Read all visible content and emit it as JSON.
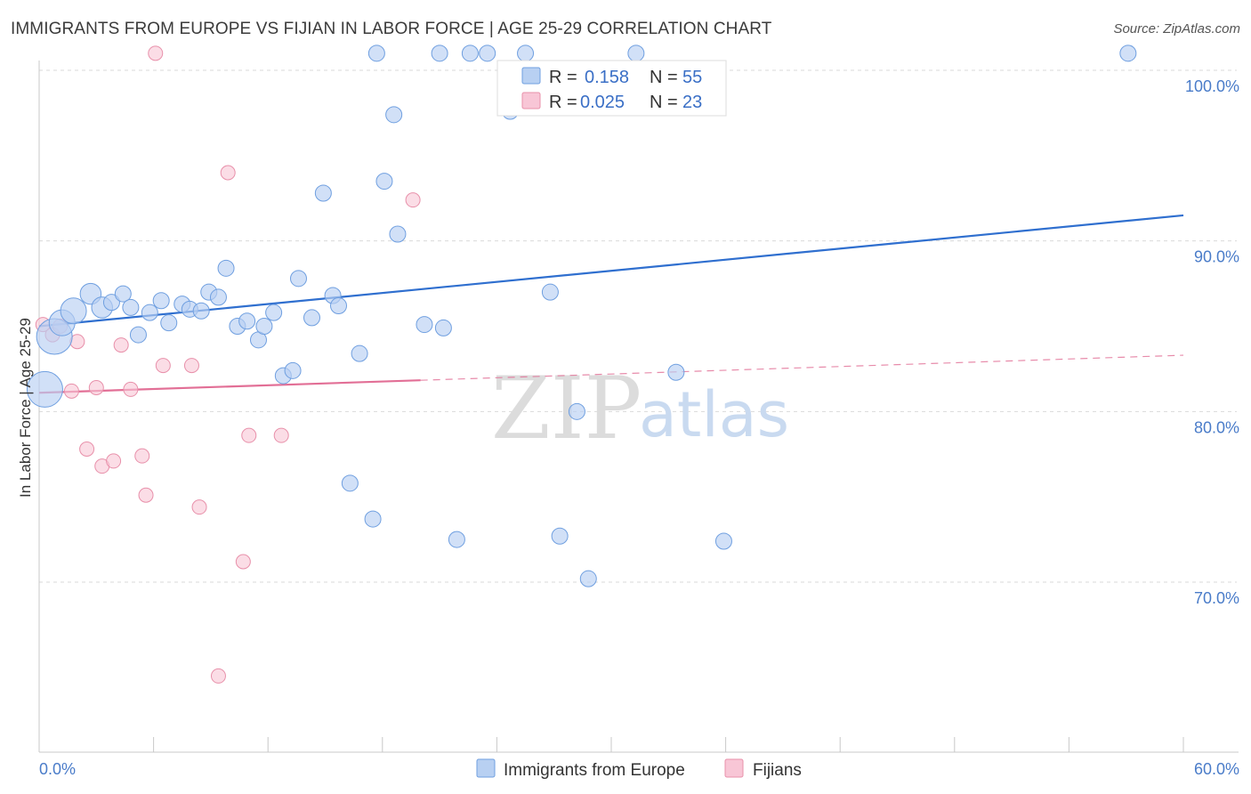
{
  "header": {
    "title": "IMMIGRANTS FROM EUROPE VS FIJIAN IN LABOR FORCE | AGE 25-29 CORRELATION CHART",
    "source": "Source: ZipAtlas.com"
  },
  "watermark": {
    "zip": "ZIP",
    "atlas": "atlas"
  },
  "colors": {
    "blue_fill": "#b8d0f2",
    "blue_stroke": "#6f9fe0",
    "blue_line": "#2f6fcf",
    "pink_fill": "#f8c6d6",
    "pink_stroke": "#e890aa",
    "pink_line": "#e26f96",
    "grid": "#d9d9d9",
    "tick_label": "#4a7cc9"
  },
  "legend": {
    "rows": [
      {
        "r_label": "R =",
        "r_value": "0.158",
        "n_label": "N =",
        "n_value": "55"
      },
      {
        "r_label": "R =",
        "r_value": "0.025",
        "n_label": "N =",
        "n_value": "23"
      }
    ]
  },
  "chart_data": {
    "type": "scatter",
    "title": "IMMIGRANTS FROM EUROPE VS FIJIAN IN LABOR FORCE | AGE 25-29 CORRELATION CHART",
    "xlabel": "",
    "ylabel": "In Labor Force | Age 25-29",
    "xlim": [
      0,
      60
    ],
    "ylim": [
      60,
      102
    ],
    "x_tick_labels": [
      "0.0%",
      "60.0%"
    ],
    "y_ticks": [
      100,
      90,
      80,
      70
    ],
    "y_tick_labels": [
      "100.0%",
      "90.0%",
      "80.0%",
      "70.0%"
    ],
    "legend_position": "top-center",
    "series": [
      {
        "name": "Immigrants from Europe",
        "R": 0.158,
        "N": 55,
        "trend": {
          "x": [
            0,
            60
          ],
          "y": [
            85.0,
            91.5
          ],
          "dashed_from": null
        },
        "points": [
          {
            "x": 0.3,
            "y": 81.3,
            "s": 3
          },
          {
            "x": 0.8,
            "y": 84.4,
            "s": 3
          },
          {
            "x": 1.2,
            "y": 85.2,
            "s": 2
          },
          {
            "x": 1.8,
            "y": 85.9,
            "s": 2
          },
          {
            "x": 2.7,
            "y": 86.9,
            "s": 1.5
          },
          {
            "x": 3.3,
            "y": 86.1,
            "s": 1.5
          },
          {
            "x": 3.8,
            "y": 86.4,
            "s": 1
          },
          {
            "x": 4.4,
            "y": 86.9,
            "s": 1
          },
          {
            "x": 4.8,
            "y": 86.1,
            "s": 1
          },
          {
            "x": 5.2,
            "y": 84.5,
            "s": 1
          },
          {
            "x": 5.8,
            "y": 85.8,
            "s": 1
          },
          {
            "x": 6.4,
            "y": 86.5,
            "s": 1
          },
          {
            "x": 6.8,
            "y": 85.2,
            "s": 1
          },
          {
            "x": 7.5,
            "y": 86.3,
            "s": 1
          },
          {
            "x": 7.9,
            "y": 86.0,
            "s": 1
          },
          {
            "x": 8.5,
            "y": 85.9,
            "s": 1
          },
          {
            "x": 8.9,
            "y": 87.0,
            "s": 1
          },
          {
            "x": 9.4,
            "y": 86.7,
            "s": 1
          },
          {
            "x": 9.8,
            "y": 88.4,
            "s": 1
          },
          {
            "x": 10.4,
            "y": 85.0,
            "s": 1
          },
          {
            "x": 10.9,
            "y": 85.3,
            "s": 1
          },
          {
            "x": 11.5,
            "y": 84.2,
            "s": 1
          },
          {
            "x": 11.8,
            "y": 85.0,
            "s": 1
          },
          {
            "x": 12.3,
            "y": 85.8,
            "s": 1
          },
          {
            "x": 12.8,
            "y": 82.1,
            "s": 1
          },
          {
            "x": 13.3,
            "y": 82.4,
            "s": 1
          },
          {
            "x": 13.6,
            "y": 87.8,
            "s": 1
          },
          {
            "x": 14.3,
            "y": 85.5,
            "s": 1
          },
          {
            "x": 14.9,
            "y": 92.8,
            "s": 1
          },
          {
            "x": 15.4,
            "y": 86.8,
            "s": 1
          },
          {
            "x": 15.7,
            "y": 86.2,
            "s": 1
          },
          {
            "x": 16.3,
            "y": 75.8,
            "s": 1
          },
          {
            "x": 16.8,
            "y": 83.4,
            "s": 1
          },
          {
            "x": 17.5,
            "y": 73.7,
            "s": 1
          },
          {
            "x": 17.7,
            "y": 101.0,
            "s": 1
          },
          {
            "x": 18.1,
            "y": 93.5,
            "s": 1
          },
          {
            "x": 18.6,
            "y": 97.4,
            "s": 1
          },
          {
            "x": 18.8,
            "y": 90.4,
            "s": 1
          },
          {
            "x": 20.2,
            "y": 85.1,
            "s": 1
          },
          {
            "x": 21.0,
            "y": 101.0,
            "s": 1
          },
          {
            "x": 21.2,
            "y": 84.9,
            "s": 1
          },
          {
            "x": 21.9,
            "y": 72.5,
            "s": 1
          },
          {
            "x": 22.6,
            "y": 101.0,
            "s": 1
          },
          {
            "x": 23.5,
            "y": 101.0,
            "s": 1
          },
          {
            "x": 24.7,
            "y": 97.6,
            "s": 1
          },
          {
            "x": 25.5,
            "y": 101.0,
            "s": 1
          },
          {
            "x": 26.8,
            "y": 87.0,
            "s": 1
          },
          {
            "x": 27.3,
            "y": 72.7,
            "s": 1
          },
          {
            "x": 28.2,
            "y": 80.0,
            "s": 1
          },
          {
            "x": 28.8,
            "y": 70.2,
            "s": 1
          },
          {
            "x": 31.3,
            "y": 101.0,
            "s": 1
          },
          {
            "x": 33.4,
            "y": 82.3,
            "s": 1
          },
          {
            "x": 35.9,
            "y": 72.4,
            "s": 1
          },
          {
            "x": 57.1,
            "y": 101.0,
            "s": 1
          }
        ]
      },
      {
        "name": "Fijians",
        "R": 0.025,
        "N": 23,
        "trend": {
          "x": [
            0,
            60
          ],
          "y": [
            81.1,
            83.3
          ],
          "dashed_from": 20
        },
        "points": [
          {
            "x": 0.2,
            "y": 85.1
          },
          {
            "x": 0.7,
            "y": 84.5
          },
          {
            "x": 1.1,
            "y": 85.0
          },
          {
            "x": 1.7,
            "y": 81.2
          },
          {
            "x": 2.0,
            "y": 84.1
          },
          {
            "x": 2.5,
            "y": 77.8
          },
          {
            "x": 3.0,
            "y": 81.4
          },
          {
            "x": 3.3,
            "y": 76.8
          },
          {
            "x": 3.9,
            "y": 77.1
          },
          {
            "x": 4.3,
            "y": 83.9
          },
          {
            "x": 4.8,
            "y": 81.3
          },
          {
            "x": 5.4,
            "y": 77.4
          },
          {
            "x": 5.6,
            "y": 75.1
          },
          {
            "x": 6.1,
            "y": 101.0
          },
          {
            "x": 6.5,
            "y": 82.7
          },
          {
            "x": 8.0,
            "y": 82.7
          },
          {
            "x": 8.4,
            "y": 74.4
          },
          {
            "x": 9.4,
            "y": 64.5
          },
          {
            "x": 9.9,
            "y": 94.0
          },
          {
            "x": 10.7,
            "y": 71.2
          },
          {
            "x": 11.0,
            "y": 78.6
          },
          {
            "x": 12.7,
            "y": 78.6
          },
          {
            "x": 19.6,
            "y": 92.4
          }
        ]
      }
    ]
  }
}
